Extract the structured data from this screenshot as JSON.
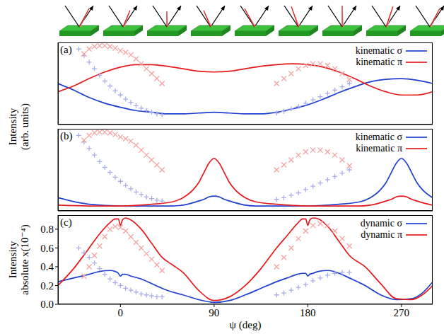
{
  "chart_data": [
    {
      "type": "line",
      "title": "(a)",
      "y_label": "Intensity (arb. units)",
      "xlim": [
        -60,
        300
      ],
      "xticks": [
        0,
        90,
        180,
        270
      ],
      "ylim": [
        0,
        1
      ],
      "tick_labels": false,
      "legend": "upper right",
      "series": [
        {
          "name": "kinematic σ",
          "color": "#1f3fd0",
          "x": [
            -60,
            -45,
            -30,
            -15,
            0,
            15,
            30,
            45,
            60,
            75,
            90,
            105,
            120,
            135,
            150,
            165,
            180,
            195,
            210,
            225,
            240,
            255,
            270,
            285,
            300
          ],
          "values": [
            0.5,
            0.42,
            0.33,
            0.26,
            0.21,
            0.17,
            0.15,
            0.13,
            0.13,
            0.14,
            0.15,
            0.14,
            0.13,
            0.13,
            0.15,
            0.19,
            0.24,
            0.31,
            0.39,
            0.46,
            0.52,
            0.55,
            0.56,
            0.54,
            0.5
          ]
        },
        {
          "name": "kinematic π",
          "color": "#e41a1c",
          "x": [
            -60,
            -45,
            -30,
            -15,
            0,
            15,
            30,
            45,
            60,
            75,
            90,
            105,
            120,
            135,
            150,
            165,
            180,
            195,
            210,
            225,
            240,
            255,
            270,
            285,
            300
          ],
          "values": [
            0.4,
            0.47,
            0.56,
            0.64,
            0.7,
            0.73,
            0.73,
            0.71,
            0.68,
            0.65,
            0.64,
            0.65,
            0.68,
            0.71,
            0.73,
            0.74,
            0.73,
            0.7,
            0.64,
            0.56,
            0.47,
            0.4,
            0.36,
            0.36,
            0.4
          ]
        },
        {
          "type": "scatter",
          "marker": "plus",
          "color": "#a9aeea",
          "x": [
            -40,
            -35,
            -30,
            -25,
            -20,
            -15,
            -10,
            -5,
            0,
            5,
            10,
            15,
            20,
            25,
            30,
            35,
            40,
            150,
            157,
            164,
            171,
            178,
            185,
            192,
            199,
            206,
            213,
            220
          ],
          "values": [
            0.92,
            0.84,
            0.76,
            0.68,
            0.6,
            0.53,
            0.47,
            0.41,
            0.36,
            0.31,
            0.27,
            0.23,
            0.2,
            0.17,
            0.15,
            0.13,
            0.12,
            0.14,
            0.16,
            0.19,
            0.22,
            0.26,
            0.3,
            0.34,
            0.38,
            0.42,
            0.46,
            0.5
          ]
        },
        {
          "type": "scatter",
          "marker": "x",
          "color": "#f4a3a3",
          "x": [
            -35,
            -30,
            -25,
            -20,
            -15,
            -10,
            -5,
            0,
            5,
            10,
            15,
            20,
            25,
            30,
            35,
            40,
            150,
            157,
            164,
            171,
            178,
            185,
            192,
            199,
            206,
            213,
            220
          ],
          "values": [
            0.86,
            0.92,
            0.95,
            0.96,
            0.96,
            0.95,
            0.93,
            0.9,
            0.88,
            0.85,
            0.8,
            0.74,
            0.68,
            0.62,
            0.56,
            0.5,
            0.5,
            0.56,
            0.62,
            0.68,
            0.72,
            0.74,
            0.74,
            0.72,
            0.68,
            0.62,
            0.55
          ]
        }
      ]
    },
    {
      "type": "line",
      "title": "(b)",
      "xlim": [
        -60,
        300
      ],
      "xticks": [
        0,
        90,
        180,
        270
      ],
      "ylim": [
        0,
        1
      ],
      "tick_labels": false,
      "legend": "upper right",
      "series": [
        {
          "name": "kinematic σ",
          "color": "#1f3fd0",
          "x": [
            -60,
            -30,
            0,
            30,
            50,
            60,
            70,
            75,
            80,
            85,
            90,
            95,
            100,
            105,
            110,
            120,
            130,
            150,
            180,
            210,
            230,
            240,
            250,
            255,
            260,
            265,
            270,
            275,
            280,
            285,
            290,
            300
          ],
          "values": [
            0.16,
            0.08,
            0.06,
            0.06,
            0.06,
            0.07,
            0.1,
            0.12,
            0.14,
            0.17,
            0.18,
            0.17,
            0.14,
            0.12,
            0.1,
            0.07,
            0.06,
            0.06,
            0.06,
            0.08,
            0.11,
            0.16,
            0.26,
            0.34,
            0.46,
            0.58,
            0.64,
            0.58,
            0.46,
            0.34,
            0.26,
            0.16
          ]
        },
        {
          "name": "kinematic π",
          "color": "#e41a1c",
          "x": [
            -60,
            -30,
            0,
            30,
            50,
            60,
            70,
            75,
            80,
            85,
            90,
            95,
            100,
            105,
            110,
            120,
            130,
            150,
            180,
            210,
            230,
            240,
            250,
            255,
            260,
            265,
            270,
            275,
            280,
            285,
            290,
            300
          ],
          "values": [
            0.07,
            0.06,
            0.06,
            0.08,
            0.11,
            0.16,
            0.26,
            0.34,
            0.46,
            0.58,
            0.64,
            0.58,
            0.46,
            0.34,
            0.26,
            0.16,
            0.11,
            0.08,
            0.06,
            0.06,
            0.06,
            0.07,
            0.1,
            0.12,
            0.14,
            0.17,
            0.18,
            0.17,
            0.14,
            0.12,
            0.1,
            0.07
          ]
        },
        {
          "type": "scatter",
          "marker": "plus",
          "color": "#a9aeea",
          "x": [
            -40,
            -35,
            -30,
            -25,
            -20,
            -15,
            -10,
            -5,
            0,
            5,
            10,
            15,
            20,
            25,
            30,
            35,
            40,
            150,
            157,
            164,
            171,
            178,
            185,
            192,
            199,
            206,
            213,
            220
          ],
          "values": [
            0.92,
            0.84,
            0.76,
            0.68,
            0.6,
            0.53,
            0.47,
            0.41,
            0.36,
            0.31,
            0.27,
            0.23,
            0.2,
            0.17,
            0.15,
            0.13,
            0.12,
            0.14,
            0.16,
            0.19,
            0.22,
            0.26,
            0.3,
            0.34,
            0.38,
            0.42,
            0.46,
            0.5
          ]
        },
        {
          "type": "scatter",
          "marker": "x",
          "color": "#f4a3a3",
          "x": [
            -35,
            -30,
            -25,
            -20,
            -15,
            -10,
            -5,
            0,
            5,
            10,
            15,
            20,
            25,
            30,
            35,
            40,
            150,
            157,
            164,
            171,
            178,
            185,
            192,
            199,
            206,
            213,
            220
          ],
          "values": [
            0.86,
            0.92,
            0.95,
            0.96,
            0.96,
            0.95,
            0.93,
            0.9,
            0.88,
            0.85,
            0.8,
            0.74,
            0.68,
            0.62,
            0.56,
            0.5,
            0.5,
            0.56,
            0.62,
            0.68,
            0.72,
            0.74,
            0.74,
            0.72,
            0.68,
            0.62,
            0.55
          ]
        }
      ]
    },
    {
      "type": "line",
      "title": "(c)",
      "y_label": "Intensity absolute x(10⁻⁴)",
      "x_label": "ψ (deg)",
      "xlim": [
        -60,
        300
      ],
      "xticks": [
        0,
        90,
        180,
        270
      ],
      "ylim": [
        0,
        0.95
      ],
      "yticks": [
        {
          "value": 0,
          "label": "0.0"
        },
        0.2,
        0.4,
        0.6,
        0.8
      ],
      "legend": "upper right",
      "series": [
        {
          "name": "dynamic σ",
          "color": "#1f3fd0",
          "x": [
            -60,
            -45,
            -30,
            -20,
            -10,
            -5,
            -2,
            0,
            2,
            5,
            10,
            20,
            30,
            40,
            50,
            60,
            75,
            90,
            105,
            120,
            135,
            150,
            160,
            170,
            175,
            178,
            180,
            182,
            185,
            190,
            200,
            210,
            220,
            235,
            250,
            265,
            280,
            290,
            300
          ],
          "values": [
            0.24,
            0.28,
            0.32,
            0.35,
            0.36,
            0.35,
            0.33,
            0.3,
            0.32,
            0.32,
            0.3,
            0.27,
            0.22,
            0.17,
            0.13,
            0.1,
            0.05,
            0.02,
            0.04,
            0.1,
            0.17,
            0.24,
            0.28,
            0.32,
            0.33,
            0.33,
            0.3,
            0.32,
            0.33,
            0.35,
            0.36,
            0.33,
            0.28,
            0.2,
            0.1,
            0.05,
            0.06,
            0.12,
            0.24
          ]
        },
        {
          "name": "dynamic π",
          "color": "#e41a1c",
          "x": [
            -60,
            -45,
            -30,
            -20,
            -10,
            -5,
            -2,
            0,
            2,
            5,
            10,
            20,
            30,
            40,
            50,
            60,
            75,
            90,
            105,
            120,
            135,
            150,
            160,
            170,
            175,
            178,
            180,
            182,
            185,
            190,
            200,
            210,
            220,
            235,
            250,
            265,
            280,
            290,
            300
          ],
          "values": [
            0.2,
            0.38,
            0.6,
            0.75,
            0.87,
            0.91,
            0.91,
            0.84,
            0.9,
            0.92,
            0.9,
            0.8,
            0.65,
            0.5,
            0.42,
            0.34,
            0.15,
            0.04,
            0.08,
            0.2,
            0.38,
            0.6,
            0.73,
            0.86,
            0.91,
            0.91,
            0.84,
            0.9,
            0.92,
            0.91,
            0.82,
            0.67,
            0.52,
            0.4,
            0.22,
            0.06,
            0.05,
            0.1,
            0.2
          ]
        },
        {
          "type": "scatter",
          "marker": "plus",
          "color": "#a9aeea",
          "x": [
            -40,
            -35,
            -30,
            -25,
            -20,
            -15,
            -10,
            -5,
            0,
            5,
            10,
            15,
            20,
            25,
            30,
            35,
            40,
            150,
            157,
            164,
            171,
            178,
            185,
            192,
            199,
            206,
            213,
            220
          ],
          "values": [
            0.6,
            0.55,
            0.5,
            0.44,
            0.38,
            0.32,
            0.27,
            0.23,
            0.2,
            0.17,
            0.15,
            0.13,
            0.11,
            0.1,
            0.09,
            0.08,
            0.08,
            0.1,
            0.12,
            0.15,
            0.18,
            0.21,
            0.25,
            0.28,
            0.31,
            0.33,
            0.34,
            0.34
          ]
        },
        {
          "type": "scatter",
          "marker": "x",
          "color": "#f4a3a3",
          "x": [
            -35,
            -30,
            -25,
            -20,
            -15,
            -10,
            -5,
            0,
            5,
            10,
            15,
            20,
            25,
            30,
            35,
            40,
            150,
            157,
            164,
            171,
            178,
            185,
            192,
            199,
            206,
            213,
            220
          ],
          "values": [
            0.3,
            0.4,
            0.52,
            0.62,
            0.72,
            0.8,
            0.83,
            0.82,
            0.78,
            0.72,
            0.66,
            0.6,
            0.54,
            0.48,
            0.42,
            0.36,
            0.4,
            0.5,
            0.6,
            0.7,
            0.78,
            0.84,
            0.86,
            0.84,
            0.78,
            0.7,
            0.62
          ]
        }
      ]
    }
  ]
}
